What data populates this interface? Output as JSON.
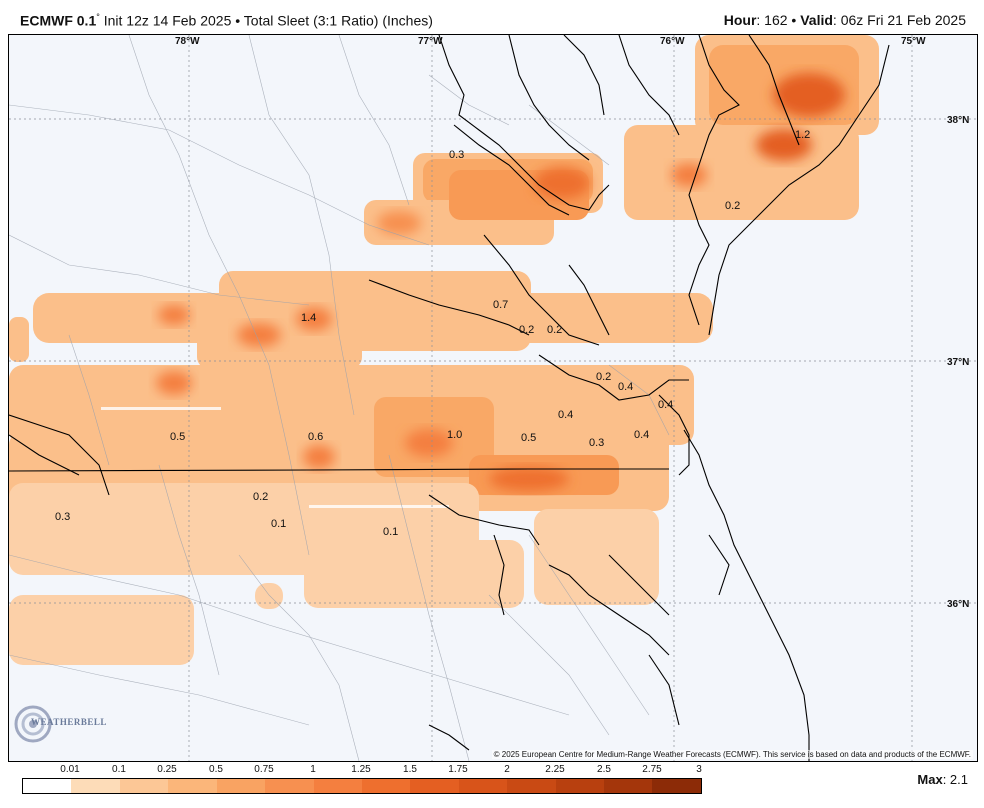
{
  "header": {
    "model": "ECMWF 0.1",
    "degree": "°",
    "init": " Init 12z 14 Feb 2025 • Total Sleet (3:1 Ratio) (Inches)",
    "hour_label": "Hour",
    "hour_value": ": 162 • ",
    "valid_label": "Valid",
    "valid_value": ": 06z Fri 21 Feb 2025"
  },
  "axes": {
    "lon_labels": [
      "78°W",
      "77°W",
      "76°W",
      "75°W"
    ],
    "lat_labels": [
      "38°N",
      "37°N",
      "36°N"
    ]
  },
  "value_labels": [
    "0.3",
    "1.2",
    "0.2",
    "0.7",
    "0.2",
    "0.2",
    "1.4",
    "0.2",
    "0.4",
    "0.4",
    "0.4",
    "0.4",
    "0.3",
    "0.5",
    "0.6",
    "1.0",
    "0.5",
    "0.2",
    "0.1",
    "0.1",
    "0.3"
  ],
  "copyright": "© 2025 European Centre for Medium-Range Weather Forecasts (ECMWF). This service is based on data and products of the ECMWF.",
  "logo": {
    "text": "WEATHERBELL"
  },
  "legend": {
    "ticks": [
      "0.01",
      "0.1",
      "0.25",
      "0.5",
      "0.75",
      "1",
      "1.25",
      "1.5",
      "1.75",
      "2",
      "2.25",
      "2.5",
      "2.75",
      "3"
    ],
    "colors": [
      "#ffffff",
      "#fddcb8",
      "#fcc796",
      "#fbb67a",
      "#f9a362",
      "#f79050",
      "#f47f3f",
      "#ee6f2e",
      "#e45f22",
      "#d8541a",
      "#c94a14",
      "#b8400f",
      "#a4360b",
      "#8c2b07"
    ]
  },
  "max": {
    "label": "Max",
    "value": ": 2.1"
  }
}
